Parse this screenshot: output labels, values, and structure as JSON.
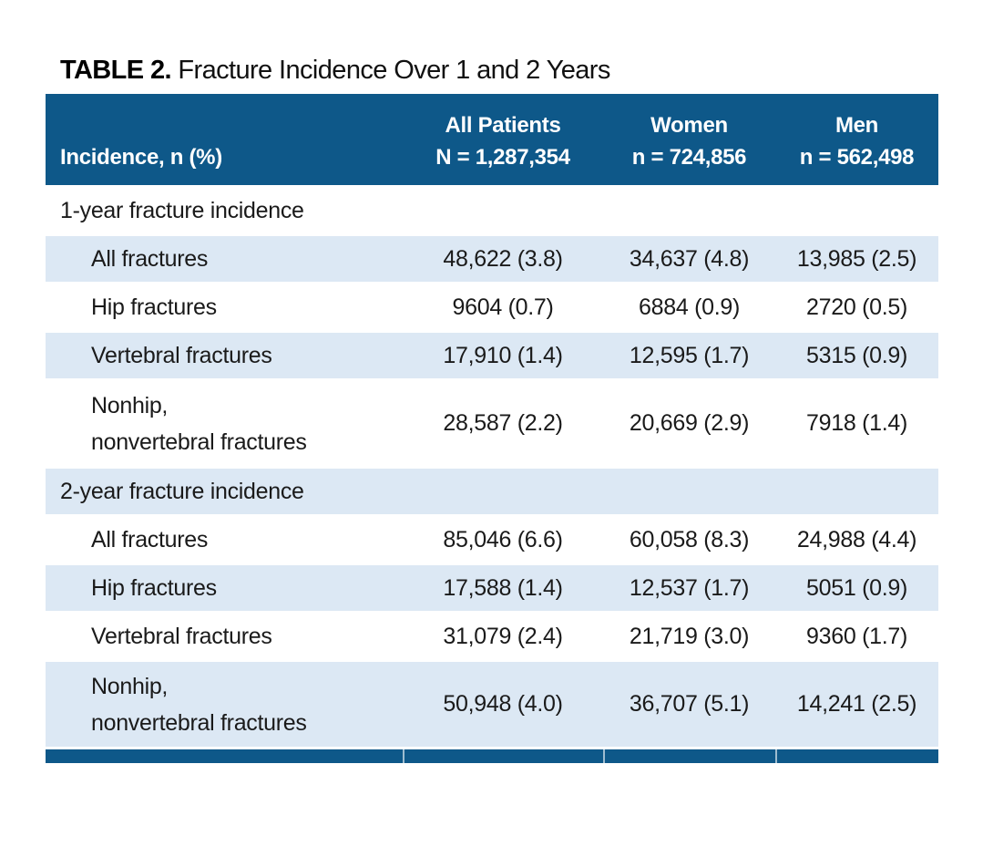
{
  "colors": {
    "navy": "#0E5889",
    "stripe": "#DCE8F4",
    "text": "#1A1A1A"
  },
  "title": {
    "label": "TABLE 2.",
    "text": " Fracture Incidence Over 1 and 2 Years"
  },
  "table": {
    "header": {
      "row_label": "Incidence, n (%)",
      "columns": [
        {
          "line1": "All Patients",
          "line2": "N = 1,287,354"
        },
        {
          "line1": "Women",
          "line2": "n = 724,856"
        },
        {
          "line1": "Men",
          "line2": "n = 562,498"
        }
      ]
    },
    "rows": [
      {
        "label": "1-year fracture incidence",
        "indent": false,
        "shaded": false,
        "values": [
          "",
          "",
          ""
        ]
      },
      {
        "label": "All fractures",
        "indent": true,
        "shaded": true,
        "values": [
          "48,622 (3.8)",
          "34,637 (4.8)",
          "13,985 (2.5)"
        ]
      },
      {
        "label": "Hip fractures",
        "indent": true,
        "shaded": false,
        "values": [
          "9604 (0.7)",
          "6884 (0.9)",
          "2720 (0.5)"
        ]
      },
      {
        "label": "Vertebral fractures",
        "indent": true,
        "shaded": true,
        "values": [
          "17,910 (1.4)",
          "12,595 (1.7)",
          "5315 (0.9)"
        ]
      },
      {
        "label": "Nonhip,",
        "label_line2": "nonvertebral fractures",
        "indent": true,
        "shaded": false,
        "values": [
          "28,587 (2.2)",
          "20,669 (2.9)",
          "7918 (1.4)"
        ]
      },
      {
        "label": "2-year fracture incidence",
        "indent": false,
        "shaded": true,
        "values": [
          "",
          "",
          ""
        ]
      },
      {
        "label": "All fractures",
        "indent": true,
        "shaded": false,
        "values": [
          "85,046 (6.6)",
          "60,058 (8.3)",
          "24,988 (4.4)"
        ]
      },
      {
        "label": "Hip fractures",
        "indent": true,
        "shaded": true,
        "values": [
          "17,588 (1.4)",
          "12,537 (1.7)",
          "5051 (0.9)"
        ]
      },
      {
        "label": "Vertebral fractures",
        "indent": true,
        "shaded": false,
        "values": [
          "31,079 (2.4)",
          "21,719 (3.0)",
          "9360 (1.7)"
        ]
      },
      {
        "label": "Nonhip,",
        "label_line2": "nonvertebral fractures",
        "indent": true,
        "shaded": true,
        "values": [
          "50,948 (4.0)",
          "36,707 (5.1)",
          "14,241 (2.5)"
        ]
      }
    ]
  }
}
